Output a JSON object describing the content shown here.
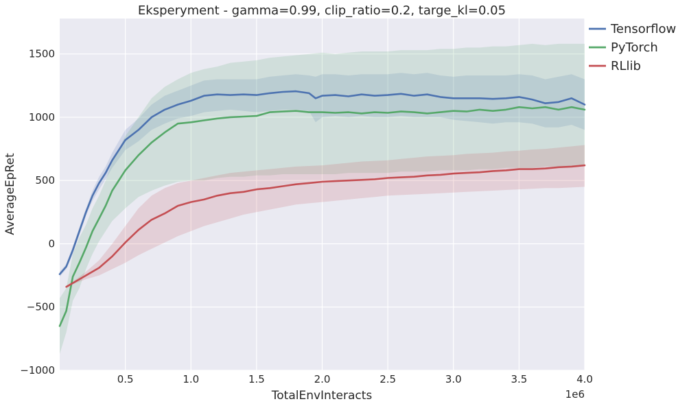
{
  "chart_data": {
    "type": "line",
    "title": "Eksperyment - gamma=0.99, clip_ratio=0.2, targe_kl=0.05",
    "xlabel": "TotalEnvInteracts",
    "ylabel": "AverageEpRet",
    "x_multiplier_label": "1e6",
    "xlim": [
      0,
      4.0
    ],
    "ylim": [
      -1000,
      1780
    ],
    "x_ticks": [
      0.5,
      1.0,
      1.5,
      2.0,
      2.5,
      3.0,
      3.5,
      4.0
    ],
    "x_tick_labels": [
      "0.5",
      "1.0",
      "1.5",
      "2.0",
      "2.5",
      "3.0",
      "3.5",
      "4.0"
    ],
    "y_ticks": [
      -1000,
      -500,
      0,
      500,
      1000,
      1500
    ],
    "y_tick_labels": [
      "−1000",
      "−500",
      "0",
      "500",
      "1000",
      "1500"
    ],
    "grid": true,
    "legend_position": "outside-top-right",
    "series": [
      {
        "name": "Tensorflow",
        "color": "#4c72b0",
        "band_color": "#4c72b0",
        "x": [
          0,
          0.05,
          0.1,
          0.15,
          0.2,
          0.25,
          0.3,
          0.35,
          0.4,
          0.5,
          0.6,
          0.7,
          0.8,
          0.9,
          1.0,
          1.1,
          1.2,
          1.3,
          1.4,
          1.5,
          1.6,
          1.7,
          1.8,
          1.9,
          1.95,
          2.0,
          2.1,
          2.2,
          2.3,
          2.4,
          2.5,
          2.6,
          2.7,
          2.8,
          2.9,
          3.0,
          3.1,
          3.2,
          3.3,
          3.4,
          3.5,
          3.6,
          3.7,
          3.8,
          3.9,
          4.0
        ],
        "y": [
          -240,
          -180,
          -50,
          100,
          250,
          380,
          480,
          560,
          660,
          820,
          900,
          1000,
          1060,
          1100,
          1130,
          1170,
          1180,
          1175,
          1180,
          1175,
          1190,
          1200,
          1205,
          1190,
          1150,
          1170,
          1175,
          1165,
          1180,
          1170,
          1175,
          1185,
          1170,
          1180,
          1160,
          1150,
          1150,
          1150,
          1145,
          1150,
          1160,
          1140,
          1110,
          1120,
          1150,
          1100
        ],
        "lower": [
          -260,
          -200,
          -80,
          70,
          220,
          340,
          430,
          510,
          600,
          740,
          810,
          900,
          950,
          990,
          1010,
          1040,
          1050,
          1060,
          1050,
          1040,
          1050,
          1060,
          1060,
          1050,
          960,
          1000,
          1010,
          1000,
          1010,
          1000,
          1000,
          1010,
          1000,
          1000,
          1000,
          980,
          970,
          960,
          950,
          960,
          960,
          950,
          920,
          920,
          940,
          900
        ],
        "upper": [
          -220,
          -160,
          -20,
          130,
          280,
          420,
          530,
          610,
          720,
          900,
          990,
          1100,
          1170,
          1210,
          1250,
          1290,
          1300,
          1300,
          1300,
          1300,
          1320,
          1330,
          1340,
          1330,
          1320,
          1340,
          1340,
          1330,
          1340,
          1340,
          1340,
          1350,
          1340,
          1350,
          1330,
          1320,
          1330,
          1330,
          1330,
          1330,
          1340,
          1330,
          1300,
          1320,
          1340,
          1300
        ]
      },
      {
        "name": "PyTorch",
        "color": "#55a868",
        "band_color": "#55a868",
        "x": [
          0,
          0.05,
          0.1,
          0.15,
          0.2,
          0.25,
          0.3,
          0.35,
          0.4,
          0.5,
          0.6,
          0.7,
          0.8,
          0.9,
          1.0,
          1.1,
          1.2,
          1.3,
          1.4,
          1.5,
          1.6,
          1.7,
          1.8,
          1.9,
          2.0,
          2.1,
          2.2,
          2.3,
          2.4,
          2.5,
          2.6,
          2.7,
          2.8,
          2.9,
          3.0,
          3.1,
          3.2,
          3.3,
          3.4,
          3.5,
          3.6,
          3.7,
          3.8,
          3.9,
          4.0
        ],
        "y": [
          -650,
          -530,
          -260,
          -150,
          -30,
          100,
          200,
          300,
          420,
          580,
          700,
          800,
          880,
          950,
          960,
          975,
          990,
          1000,
          1005,
          1010,
          1040,
          1045,
          1050,
          1040,
          1040,
          1035,
          1040,
          1030,
          1040,
          1035,
          1045,
          1040,
          1030,
          1040,
          1050,
          1045,
          1060,
          1050,
          1060,
          1080,
          1070,
          1080,
          1060,
          1080,
          1060
        ],
        "lower": [
          -870,
          -700,
          -450,
          -350,
          -200,
          -80,
          20,
          100,
          180,
          280,
          370,
          420,
          460,
          490,
          500,
          500,
          520,
          530,
          530,
          540,
          540,
          550,
          550,
          550,
          550,
          550,
          560,
          560,
          560,
          560,
          570,
          570,
          570,
          580,
          580,
          580,
          590,
          590,
          600,
          600,
          600,
          610,
          610,
          610,
          620
        ],
        "upper": [
          -430,
          -350,
          -80,
          50,
          150,
          280,
          380,
          500,
          650,
          850,
          1000,
          1150,
          1240,
          1300,
          1350,
          1380,
          1400,
          1430,
          1440,
          1450,
          1470,
          1480,
          1490,
          1500,
          1510,
          1500,
          1510,
          1520,
          1520,
          1520,
          1530,
          1530,
          1530,
          1540,
          1540,
          1550,
          1550,
          1560,
          1560,
          1570,
          1580,
          1570,
          1580,
          1580,
          1580
        ]
      },
      {
        "name": "RLlib",
        "color": "#c44e52",
        "band_color": "#c44e52",
        "x": [
          0.05,
          0.1,
          0.2,
          0.3,
          0.4,
          0.5,
          0.6,
          0.7,
          0.8,
          0.9,
          1.0,
          1.1,
          1.2,
          1.3,
          1.4,
          1.5,
          1.6,
          1.7,
          1.8,
          1.9,
          2.0,
          2.1,
          2.2,
          2.3,
          2.4,
          2.5,
          2.6,
          2.7,
          2.8,
          2.9,
          3.0,
          3.1,
          3.2,
          3.3,
          3.4,
          3.5,
          3.6,
          3.7,
          3.8,
          3.9,
          4.0
        ],
        "y": [
          -340,
          -310,
          -250,
          -190,
          -100,
          10,
          110,
          190,
          240,
          300,
          330,
          350,
          380,
          400,
          410,
          430,
          440,
          455,
          470,
          480,
          490,
          495,
          500,
          505,
          510,
          520,
          525,
          530,
          540,
          545,
          555,
          560,
          565,
          575,
          580,
          590,
          590,
          595,
          605,
          610,
          620
        ],
        "lower": [
          -350,
          -320,
          -280,
          -250,
          -200,
          -150,
          -90,
          -40,
          10,
          60,
          100,
          140,
          170,
          200,
          230,
          250,
          270,
          290,
          310,
          320,
          330,
          340,
          350,
          360,
          370,
          380,
          385,
          390,
          395,
          400,
          405,
          410,
          415,
          420,
          425,
          430,
          435,
          440,
          440,
          445,
          450
        ],
        "upper": [
          -330,
          -300,
          -220,
          -130,
          0,
          140,
          280,
          380,
          440,
          480,
          500,
          520,
          540,
          560,
          570,
          580,
          590,
          600,
          610,
          615,
          620,
          630,
          640,
          650,
          655,
          660,
          670,
          680,
          690,
          695,
          700,
          710,
          715,
          720,
          730,
          735,
          745,
          750,
          760,
          770,
          780
        ]
      }
    ]
  }
}
